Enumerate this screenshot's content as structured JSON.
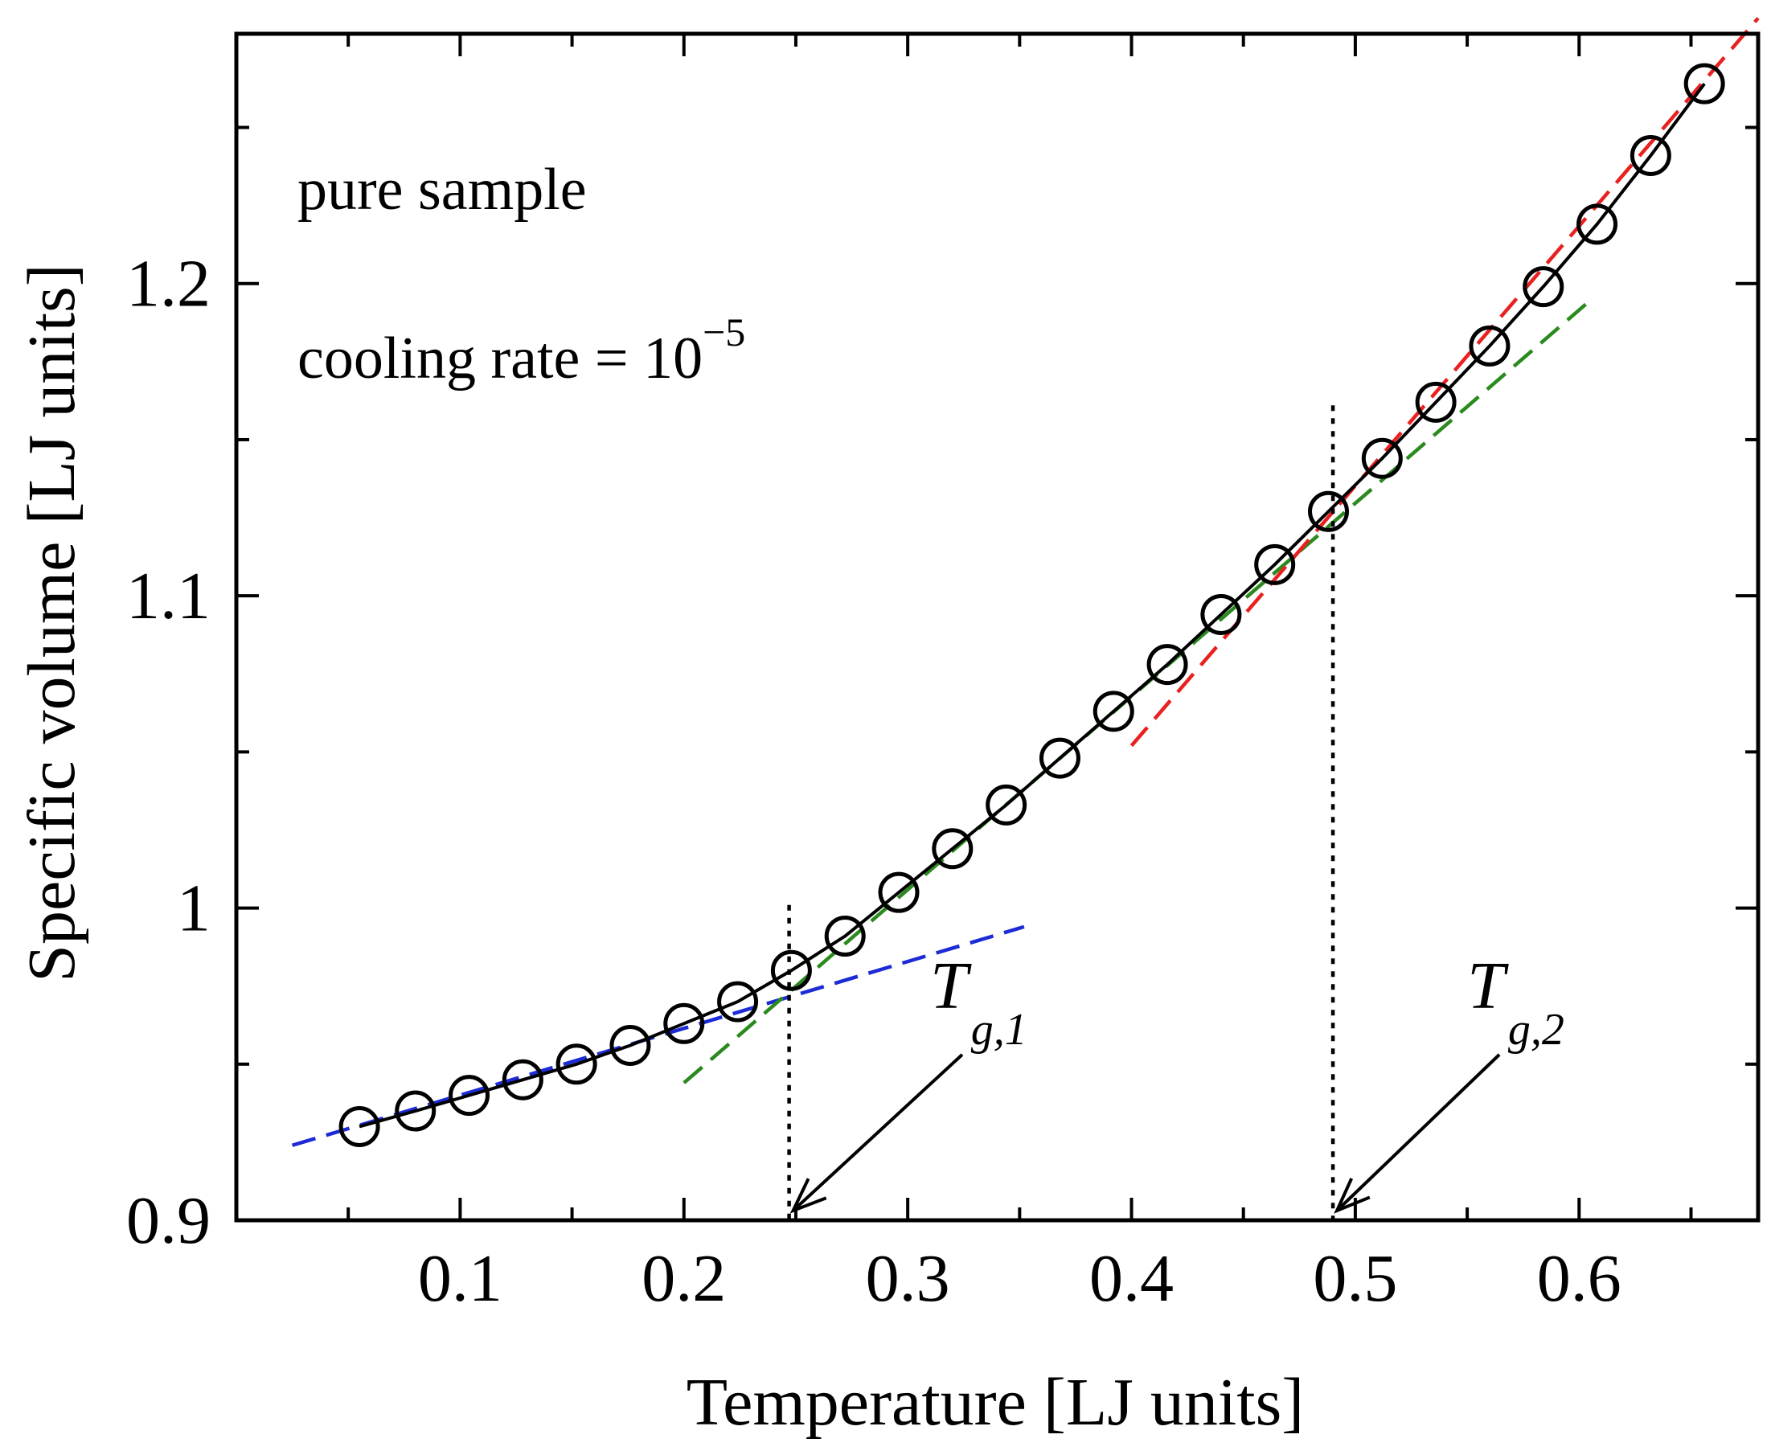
{
  "chart_data": {
    "type": "scatter",
    "xlabel": "Temperature [LJ units]",
    "ylabel": "Specific volume [LJ units]",
    "xlim": [
      0.0,
      0.68
    ],
    "ylim": [
      0.9,
      1.28
    ],
    "x_ticks": [
      0.1,
      0.2,
      0.3,
      0.4,
      0.5,
      0.6
    ],
    "x_tick_labels": [
      "0.1",
      "0.2",
      "0.3",
      "0.4",
      "0.5",
      "0.6"
    ],
    "x_minor_ticks": [
      0.05,
      0.15,
      0.25,
      0.35,
      0.45,
      0.55,
      0.65
    ],
    "y_ticks": [
      0.9,
      1.0,
      1.1,
      1.2
    ],
    "y_tick_labels": [
      "0.9",
      "1",
      "1.1",
      "1.2"
    ],
    "y_minor_ticks": [
      0.95,
      1.05,
      1.15,
      1.25
    ],
    "grid": false,
    "annotations": {
      "line1": "pure sample",
      "line2_prefix": "cooling rate = 10",
      "line2_exponent": "−5"
    },
    "series": [
      {
        "marker": "open-circle",
        "color": "#000000",
        "connected": true,
        "points": [
          {
            "x": 0.055,
            "y": 0.93
          },
          {
            "x": 0.08,
            "y": 0.935
          },
          {
            "x": 0.104,
            "y": 0.94
          },
          {
            "x": 0.128,
            "y": 0.945
          },
          {
            "x": 0.152,
            "y": 0.95
          },
          {
            "x": 0.176,
            "y": 0.956
          },
          {
            "x": 0.2,
            "y": 0.963
          },
          {
            "x": 0.224,
            "y": 0.97
          },
          {
            "x": 0.248,
            "y": 0.98
          },
          {
            "x": 0.272,
            "y": 0.991
          },
          {
            "x": 0.296,
            "y": 1.005
          },
          {
            "x": 0.32,
            "y": 1.019
          },
          {
            "x": 0.344,
            "y": 1.033
          },
          {
            "x": 0.368,
            "y": 1.048
          },
          {
            "x": 0.392,
            "y": 1.063
          },
          {
            "x": 0.416,
            "y": 1.078
          },
          {
            "x": 0.44,
            "y": 1.094
          },
          {
            "x": 0.464,
            "y": 1.11
          },
          {
            "x": 0.488,
            "y": 1.127
          },
          {
            "x": 0.512,
            "y": 1.144
          },
          {
            "x": 0.536,
            "y": 1.162
          },
          {
            "x": 0.56,
            "y": 1.18
          },
          {
            "x": 0.584,
            "y": 1.199
          },
          {
            "x": 0.608,
            "y": 1.219
          },
          {
            "x": 0.632,
            "y": 1.241
          },
          {
            "x": 0.656,
            "y": 1.264
          }
        ]
      }
    ],
    "fit_lines": [
      {
        "color": "#1c2bd6",
        "style": "dashed",
        "x": [
          0.025,
          0.352
        ],
        "y": [
          0.924,
          0.994
        ]
      },
      {
        "color": "#2a8a1e",
        "style": "dashed",
        "x": [
          0.2,
          0.604
        ],
        "y": [
          0.944,
          1.194
        ]
      },
      {
        "color": "#e8211f",
        "style": "dashed",
        "x": [
          0.4,
          0.68
        ],
        "y": [
          1.052,
          1.285
        ]
      }
    ],
    "glass_transitions": [
      {
        "label_main": "T",
        "label_sub": "g,1",
        "x": 0.247,
        "y_top": 1.001,
        "label_x": 0.31,
        "label_y": 0.968
      },
      {
        "label_main": "T",
        "label_sub": "g,2",
        "x": 0.49,
        "y_top": 1.161,
        "label_x": 0.55,
        "label_y": 0.968
      }
    ],
    "colors": {
      "axes": "#000000",
      "markers": "#000000"
    }
  }
}
